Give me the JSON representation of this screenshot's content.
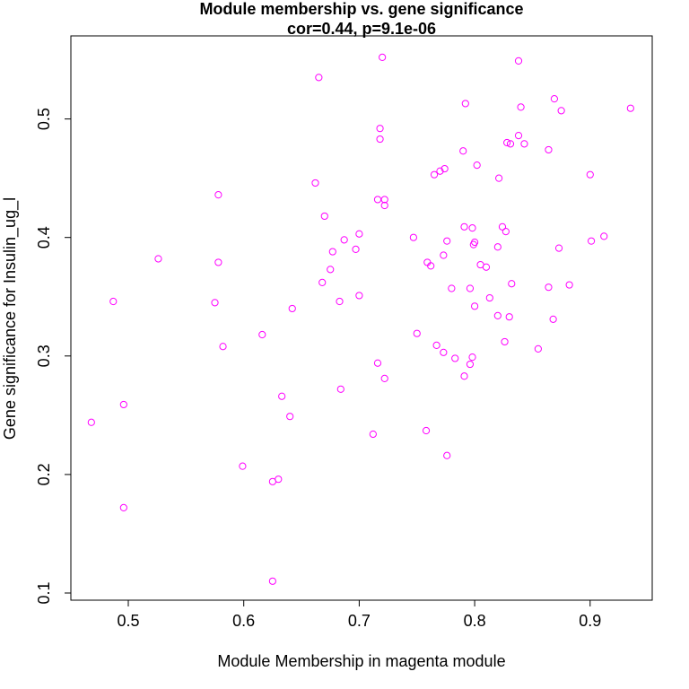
{
  "chart_data": {
    "type": "scatter",
    "title": "Module membership vs. gene significance",
    "subtitle": "cor=0.44, p=9.1e-06",
    "xlabel": "Module Membership in magenta module",
    "ylabel": "Gene significance for Insulin_ug_l",
    "xlim": [
      0.46,
      0.94
    ],
    "ylim": [
      0.1,
      0.55
    ],
    "xticks": [
      0.5,
      0.6,
      0.7,
      0.8,
      0.9
    ],
    "xtick_labels": [
      "0.5",
      "0.6",
      "0.7",
      "0.8",
      "0.9"
    ],
    "yticks": [
      0.1,
      0.2,
      0.3,
      0.4,
      0.5
    ],
    "ytick_labels": [
      "0.1",
      "0.2",
      "0.3",
      "0.4",
      "0.5"
    ],
    "point_color": "#ff00ff",
    "grid": false,
    "points": [
      [
        0.72,
        0.552
      ],
      [
        0.665,
        0.535
      ],
      [
        0.838,
        0.549
      ],
      [
        0.869,
        0.517
      ],
      [
        0.792,
        0.513
      ],
      [
        0.84,
        0.51
      ],
      [
        0.875,
        0.507
      ],
      [
        0.935,
        0.509
      ],
      [
        0.718,
        0.492
      ],
      [
        0.718,
        0.483
      ],
      [
        0.838,
        0.486
      ],
      [
        0.828,
        0.48
      ],
      [
        0.831,
        0.479
      ],
      [
        0.843,
        0.479
      ],
      [
        0.864,
        0.474
      ],
      [
        0.79,
        0.473
      ],
      [
        0.802,
        0.461
      ],
      [
        0.774,
        0.458
      ],
      [
        0.77,
        0.456
      ],
      [
        0.765,
        0.453
      ],
      [
        0.9,
        0.453
      ],
      [
        0.821,
        0.45
      ],
      [
        0.662,
        0.446
      ],
      [
        0.578,
        0.436
      ],
      [
        0.716,
        0.432
      ],
      [
        0.722,
        0.432
      ],
      [
        0.722,
        0.427
      ],
      [
        0.67,
        0.418
      ],
      [
        0.791,
        0.409
      ],
      [
        0.798,
        0.408
      ],
      [
        0.824,
        0.409
      ],
      [
        0.827,
        0.405
      ],
      [
        0.7,
        0.403
      ],
      [
        0.912,
        0.401
      ],
      [
        0.747,
        0.4
      ],
      [
        0.687,
        0.398
      ],
      [
        0.776,
        0.397
      ],
      [
        0.901,
        0.397
      ],
      [
        0.8,
        0.396
      ],
      [
        0.799,
        0.394
      ],
      [
        0.82,
        0.392
      ],
      [
        0.873,
        0.391
      ],
      [
        0.697,
        0.39
      ],
      [
        0.677,
        0.388
      ],
      [
        0.773,
        0.385
      ],
      [
        0.526,
        0.382
      ],
      [
        0.578,
        0.379
      ],
      [
        0.759,
        0.379
      ],
      [
        0.762,
        0.376
      ],
      [
        0.805,
        0.377
      ],
      [
        0.81,
        0.375
      ],
      [
        0.675,
        0.373
      ],
      [
        0.668,
        0.362
      ],
      [
        0.78,
        0.357
      ],
      [
        0.796,
        0.357
      ],
      [
        0.832,
        0.361
      ],
      [
        0.864,
        0.358
      ],
      [
        0.882,
        0.36
      ],
      [
        0.7,
        0.351
      ],
      [
        0.813,
        0.349
      ],
      [
        0.487,
        0.346
      ],
      [
        0.575,
        0.345
      ],
      [
        0.683,
        0.346
      ],
      [
        0.8,
        0.342
      ],
      [
        0.642,
        0.34
      ],
      [
        0.82,
        0.334
      ],
      [
        0.83,
        0.333
      ],
      [
        0.868,
        0.331
      ],
      [
        0.616,
        0.318
      ],
      [
        0.75,
        0.319
      ],
      [
        0.826,
        0.312
      ],
      [
        0.767,
        0.309
      ],
      [
        0.582,
        0.308
      ],
      [
        0.855,
        0.306
      ],
      [
        0.773,
        0.303
      ],
      [
        0.798,
        0.299
      ],
      [
        0.783,
        0.298
      ],
      [
        0.716,
        0.294
      ],
      [
        0.796,
        0.293
      ],
      [
        0.791,
        0.283
      ],
      [
        0.722,
        0.281
      ],
      [
        0.684,
        0.272
      ],
      [
        0.633,
        0.266
      ],
      [
        0.496,
        0.259
      ],
      [
        0.64,
        0.249
      ],
      [
        0.468,
        0.244
      ],
      [
        0.758,
        0.237
      ],
      [
        0.712,
        0.234
      ],
      [
        0.776,
        0.216
      ],
      [
        0.599,
        0.207
      ],
      [
        0.625,
        0.194
      ],
      [
        0.63,
        0.196
      ],
      [
        0.496,
        0.172
      ],
      [
        0.625,
        0.11
      ]
    ]
  }
}
